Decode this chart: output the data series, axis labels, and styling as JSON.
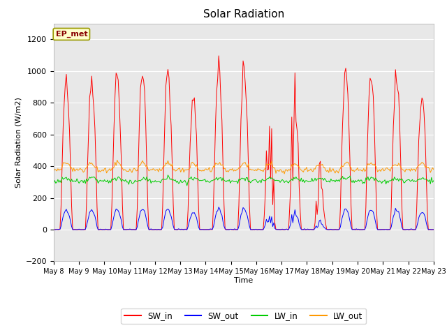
{
  "title": "Solar Radiation",
  "ylabel": "Solar Radiation (W/m2)",
  "xlabel": "Time",
  "ylim": [
    -200,
    1300
  ],
  "yticks": [
    -200,
    0,
    200,
    400,
    600,
    800,
    1000,
    1200
  ],
  "start_day": 8,
  "end_day": 23,
  "n_days": 15,
  "colors": {
    "SW_in": "#ff0000",
    "SW_out": "#0000ff",
    "LW_in": "#00cc00",
    "LW_out": "#ff9900"
  },
  "fig_bg": "#ffffff",
  "plot_bg": "#e8e8e8",
  "grid_color": "#ffffff",
  "label_box_text": "EP_met",
  "label_box_bg": "#ffffcc",
  "label_box_edge": "#999900"
}
